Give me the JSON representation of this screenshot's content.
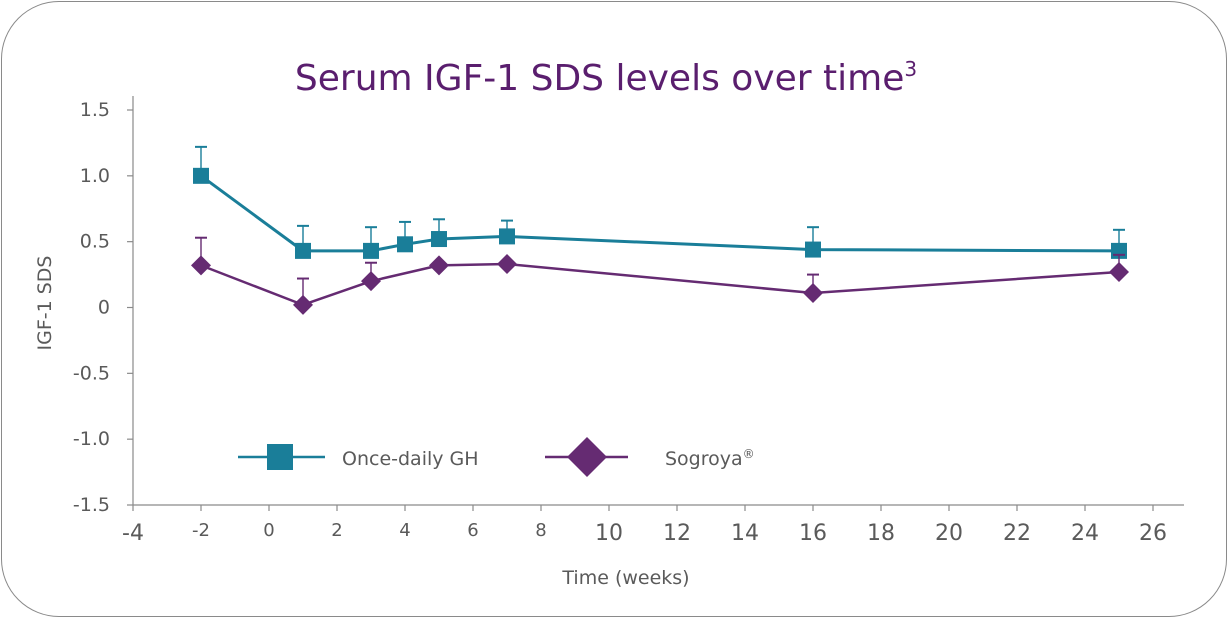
{
  "chart_data": {
    "type": "line",
    "title": "Serum IGF-1 SDS levels over time",
    "title_superscript": "3",
    "xlabel": "Time (weeks)",
    "ylabel": "IGF-1 SDS",
    "xlim": [
      -4,
      26
    ],
    "ylim": [
      -1.5,
      1.5
    ],
    "x_ticks": [
      "-4",
      "-2",
      "0",
      "2",
      "4",
      "6",
      "8",
      "10",
      "12",
      "14",
      "16",
      "18",
      "20",
      "22",
      "24",
      "26"
    ],
    "y_ticks": [
      "1.5",
      "1.0",
      "0.5",
      "0",
      "-0.5",
      "-1.0",
      "-1.5"
    ],
    "legend_position": "lower-center",
    "series": [
      {
        "name": "Once-daily GH",
        "color": "#1a7e99",
        "marker": "square",
        "x": [
          -2,
          1,
          3,
          4,
          5,
          7,
          16,
          25
        ],
        "y": [
          1.0,
          0.43,
          0.43,
          0.48,
          0.52,
          0.54,
          0.44,
          0.43
        ],
        "error_upper": [
          0.22,
          0.19,
          0.18,
          0.17,
          0.15,
          0.12,
          0.17,
          0.16
        ]
      },
      {
        "name": "Sogroya",
        "name_mark": "®",
        "color": "#652b72",
        "marker": "diamond",
        "x": [
          -2,
          1,
          3,
          5,
          7,
          16,
          25
        ],
        "y": [
          0.32,
          0.02,
          0.2,
          0.32,
          0.33,
          0.11,
          0.27
        ],
        "error_upper": [
          0.21,
          0.2,
          0.14,
          0.0,
          0.0,
          0.14,
          0.13
        ]
      }
    ]
  }
}
